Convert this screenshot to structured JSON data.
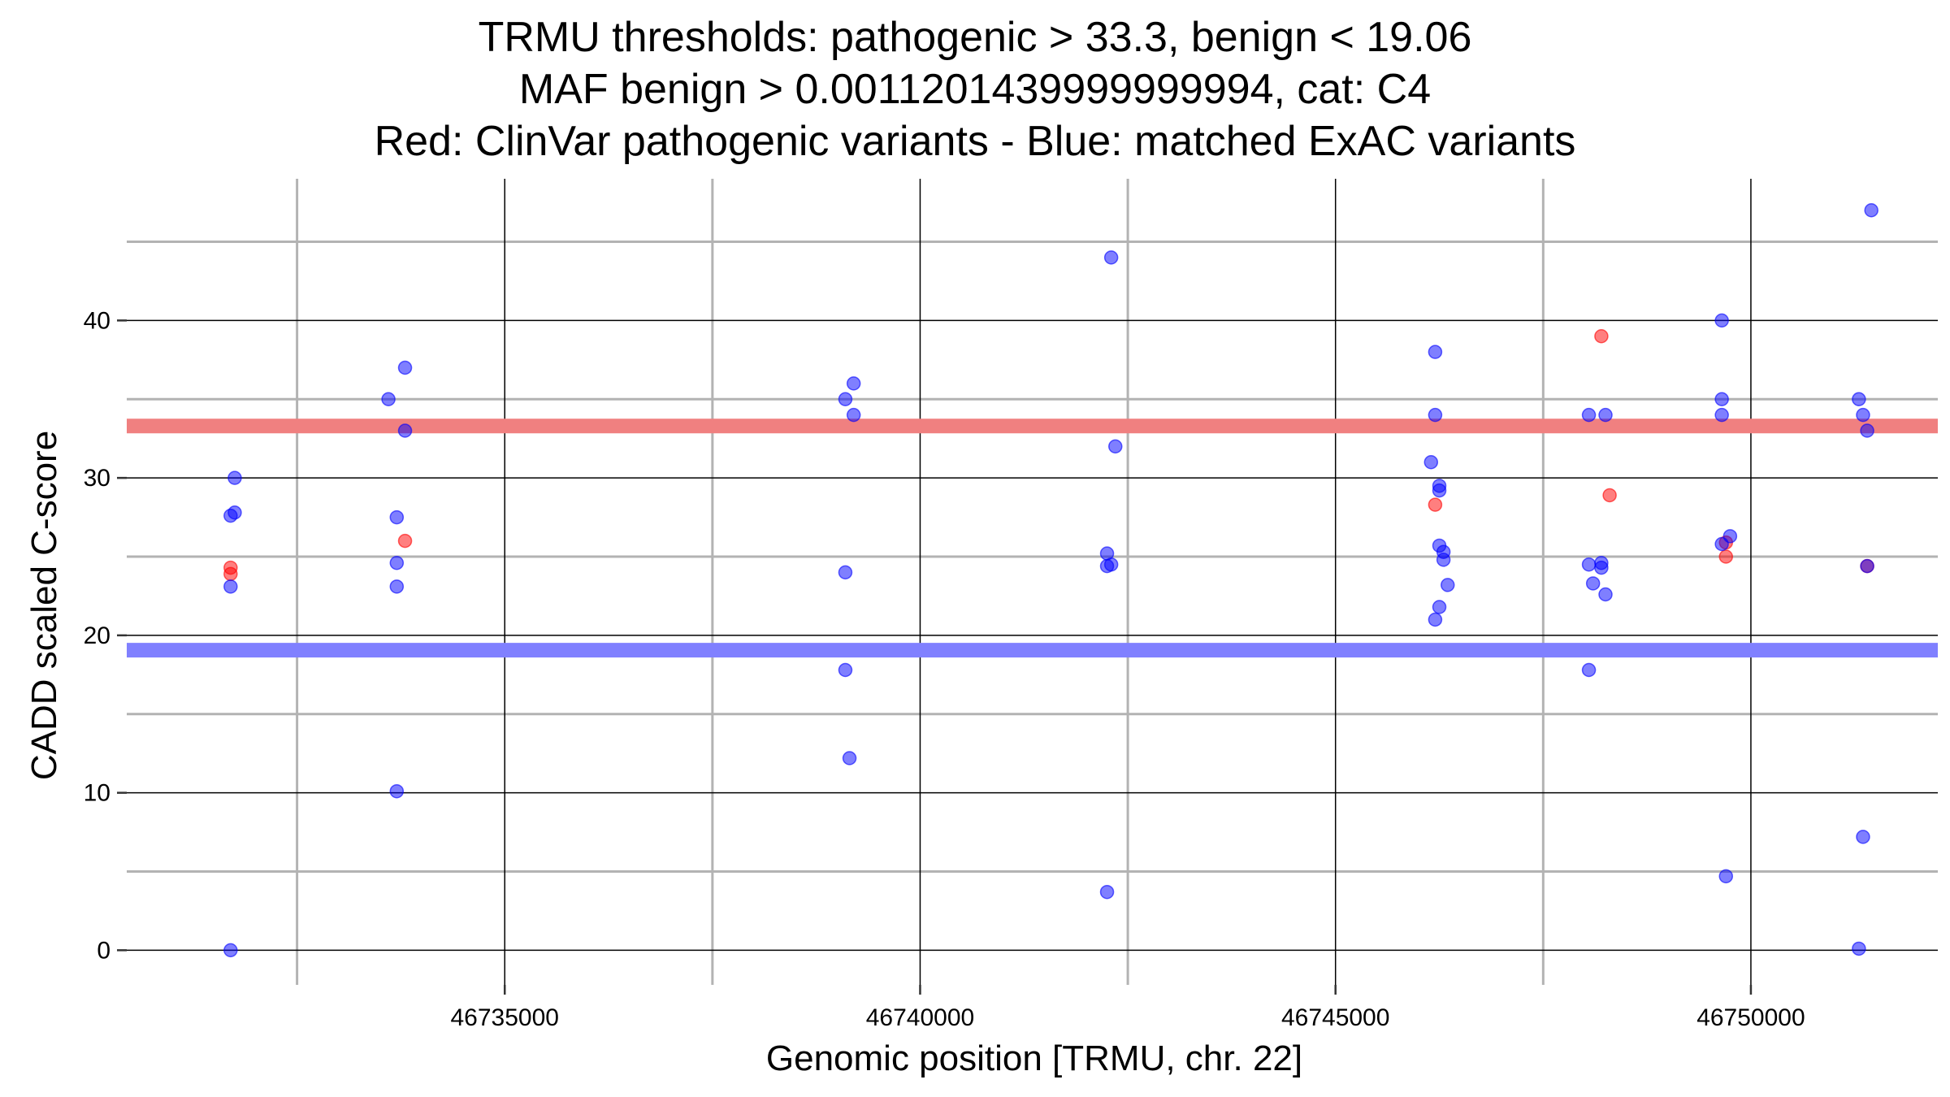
{
  "chart_data": {
    "type": "scatter",
    "title_lines": [
      "TRMU thresholds: pathogenic > 33.3, benign < 19.06",
      "MAF benign > 0.0011201439999999994, cat: C4",
      "Red: ClinVar pathogenic variants - Blue: matched ExAC variants"
    ],
    "xlabel": "Genomic position [TRMU, chr. 22]",
    "ylabel": "CADD scaled C-score",
    "xlim": [
      46730450,
      46752250
    ],
    "ylim": [
      -2.2,
      49.0
    ],
    "x_ticks": [
      46735000,
      46740000,
      46745000,
      46750000
    ],
    "x_tick_labels": [
      "46735000",
      "46740000",
      "46745000",
      "46750000"
    ],
    "x_minor_ticks": [
      46732500,
      46737500,
      46742500,
      46747500
    ],
    "y_ticks": [
      0,
      10,
      20,
      30,
      40
    ],
    "y_tick_labels": [
      "0",
      "10",
      "20",
      "30",
      "40"
    ],
    "y_minor_ticks": [
      5,
      15,
      25,
      35,
      45
    ],
    "grid": true,
    "thresholds": [
      {
        "name": "pathogenic",
        "value": 33.3,
        "color": "#f08080"
      },
      {
        "name": "benign",
        "value": 19.06,
        "color": "#8080ff"
      }
    ],
    "series": [
      {
        "name": "ClinVar pathogenic variants",
        "color": "#ff0000",
        "points": [
          [
            46731700,
            24.3
          ],
          [
            46731700,
            23.9
          ],
          [
            46733800,
            26.0
          ],
          [
            46746200,
            28.3
          ],
          [
            46748200,
            39.0
          ],
          [
            46748300,
            28.9
          ],
          [
            46749700,
            25.9
          ],
          [
            46749700,
            25.0
          ],
          [
            46751400,
            24.4
          ]
        ]
      },
      {
        "name": "matched ExAC variants",
        "color": "#0000ff",
        "points": [
          [
            46731700,
            0.0
          ],
          [
            46731700,
            23.1
          ],
          [
            46731700,
            27.6
          ],
          [
            46731750,
            27.8
          ],
          [
            46731750,
            30.0
          ],
          [
            46733600,
            35.0
          ],
          [
            46733700,
            24.6
          ],
          [
            46733700,
            27.5
          ],
          [
            46733700,
            23.1
          ],
          [
            46733800,
            33.0
          ],
          [
            46733800,
            37.0
          ],
          [
            46733700,
            10.1
          ],
          [
            46739100,
            35.0
          ],
          [
            46739200,
            36.0
          ],
          [
            46739200,
            34.0
          ],
          [
            46739100,
            24.0
          ],
          [
            46739100,
            17.8
          ],
          [
            46739150,
            12.2
          ],
          [
            46742300,
            44.0
          ],
          [
            46742350,
            32.0
          ],
          [
            46742250,
            25.2
          ],
          [
            46742250,
            24.4
          ],
          [
            46742300,
            24.5
          ],
          [
            46742250,
            3.7
          ],
          [
            46746200,
            38.0
          ],
          [
            46746200,
            34.0
          ],
          [
            46746150,
            31.0
          ],
          [
            46746250,
            29.5
          ],
          [
            46746250,
            29.2
          ],
          [
            46746250,
            25.7
          ],
          [
            46746300,
            25.3
          ],
          [
            46746300,
            24.8
          ],
          [
            46746350,
            23.2
          ],
          [
            46746250,
            21.8
          ],
          [
            46746200,
            21.0
          ],
          [
            46748050,
            34.0
          ],
          [
            46748250,
            34.0
          ],
          [
            46748050,
            24.5
          ],
          [
            46748200,
            24.6
          ],
          [
            46748200,
            24.3
          ],
          [
            46748100,
            23.3
          ],
          [
            46748250,
            22.6
          ],
          [
            46748050,
            17.8
          ],
          [
            46749650,
            40.0
          ],
          [
            46749650,
            35.0
          ],
          [
            46749650,
            34.0
          ],
          [
            46749750,
            26.3
          ],
          [
            46749650,
            25.8
          ],
          [
            46749700,
            4.7
          ],
          [
            46751300,
            35.0
          ],
          [
            46751350,
            34.0
          ],
          [
            46751400,
            33.0
          ],
          [
            46751400,
            24.4
          ],
          [
            46751350,
            7.2
          ],
          [
            46751300,
            0.1
          ],
          [
            46751450,
            47.0
          ]
        ]
      }
    ]
  }
}
